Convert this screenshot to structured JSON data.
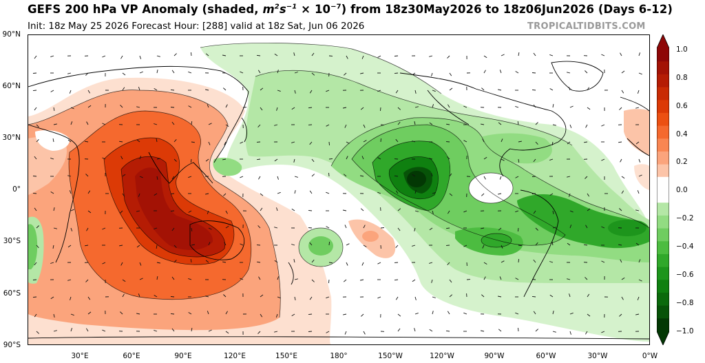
{
  "title": {
    "prefix": "GEFS 200 hPa VP Anomaly (shaded, ",
    "units_base": "m",
    "units_exp1": "2",
    "units_mid": "s",
    "units_exp2": "−1",
    "units_mult": " × 10",
    "units_exp3": "−7",
    "suffix": ") from 18z30May2026 to 18z06Jun2026 (Days 6-12)"
  },
  "subtitle": "Init: 18z May 25 2026   Forecast Hour: [288]   valid at 18z Sat, Jun 06 2026",
  "credit": "TROPICALTIDBITS.COM",
  "y_axis_labels": [
    "90°N",
    "60°N",
    "30°N",
    "0°",
    "30°S",
    "60°S",
    "90°S"
  ],
  "x_axis_labels": [
    "30°E",
    "60°E",
    "90°E",
    "120°E",
    "150°E",
    "180°",
    "150°W",
    "120°W",
    "90°W",
    "60°W",
    "30°W",
    "0°W"
  ],
  "colorbar": {
    "labels": [
      "1.0",
      "0.8",
      "0.6",
      "0.4",
      "0.2",
      "0.0",
      "−0.2",
      "−0.4",
      "−0.6",
      "−0.8",
      "−1.0"
    ],
    "colors_positive": [
      "#fde0d0",
      "#fcc4a8",
      "#fba47c",
      "#f98652",
      "#f5692e",
      "#ec5012",
      "#dc3a06",
      "#c92b04",
      "#b51c04",
      "#a31205",
      "#8e0707"
    ],
    "colors_negative": [
      "#d5f2cc",
      "#b4e7a6",
      "#92dc82",
      "#6fcd60",
      "#4cbc40",
      "#30a82a",
      "#1d951c",
      "#0f8010",
      "#0b6a0c",
      "#075308",
      "#033804"
    ]
  }
}
